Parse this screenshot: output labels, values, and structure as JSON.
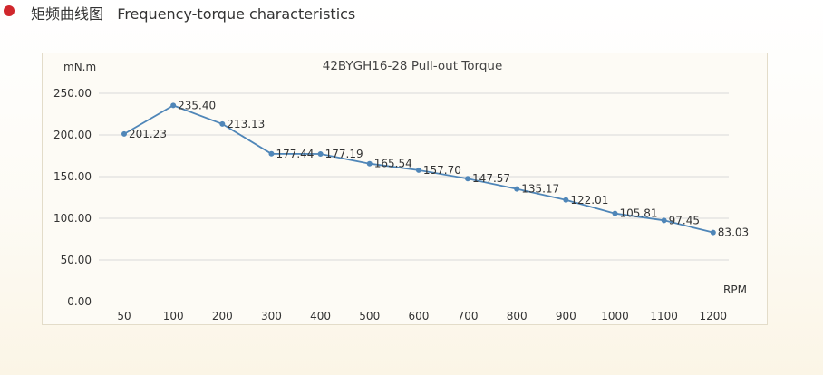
{
  "header": {
    "title_cn": "矩频曲线图",
    "title_en": "Frequency-torque characteristics",
    "bullet_color": "#d0272c"
  },
  "chart_data": {
    "type": "line",
    "title": "42BYGH16-28 Pull-out Torque",
    "xlabel": "RPM",
    "ylabel": "mN.m",
    "categories": [
      "50",
      "100",
      "200",
      "300",
      "400",
      "500",
      "600",
      "700",
      "800",
      "900",
      "1000",
      "1100",
      "1200"
    ],
    "series": [
      {
        "values": [
          201.23,
          235.4,
          213.13,
          177.44,
          177.19,
          165.54,
          157.7,
          147.57,
          135.17,
          122.01,
          105.81,
          97.45,
          83.03
        ],
        "labels": [
          "201.23",
          "235.40",
          "213.13",
          "177.44",
          "177.19",
          "165.54",
          "157.70",
          "147.57",
          "135.17",
          "122.01",
          "105.81",
          "97.45",
          "83.03"
        ],
        "color": "#4f86b8"
      }
    ],
    "yticks": [
      "0.00",
      "50.00",
      "100.00",
      "150.00",
      "200.00",
      "250.00"
    ],
    "ylim": [
      0,
      250
    ],
    "grid": true,
    "legend": "none"
  }
}
